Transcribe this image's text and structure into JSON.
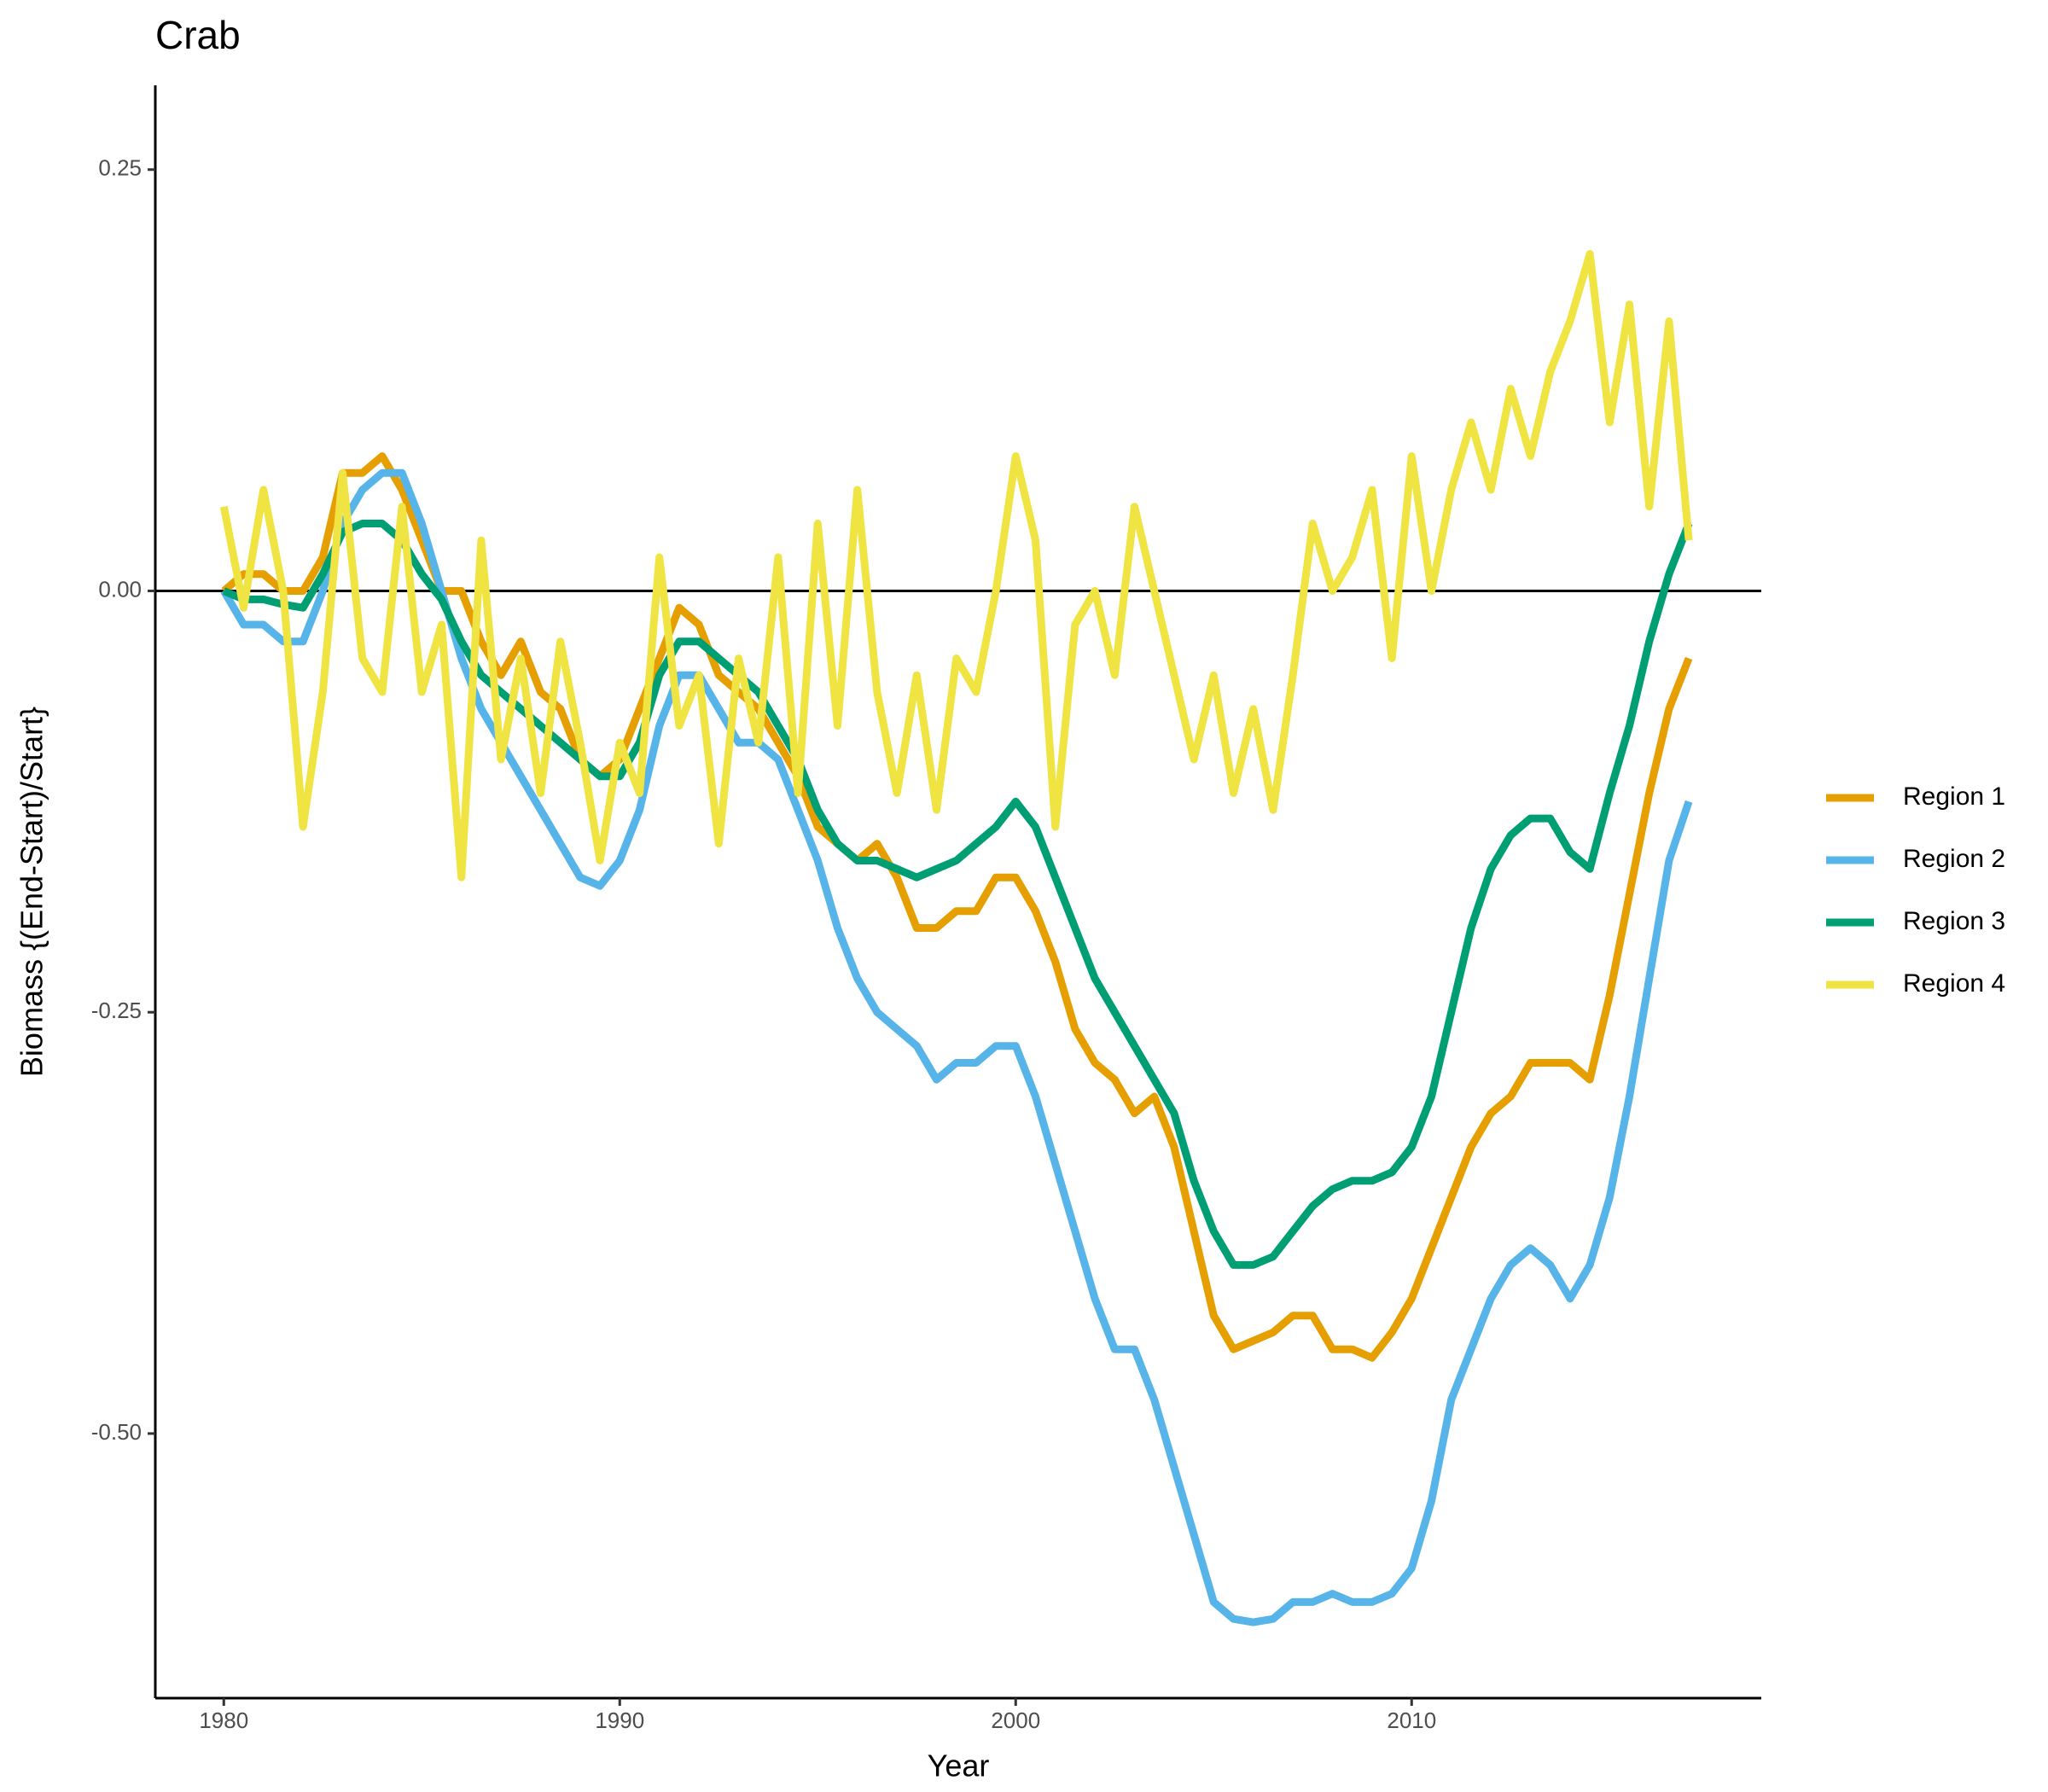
{
  "chart_data": {
    "type": "line",
    "title": "Crab",
    "x_label": "Year",
    "y_label": "Biomass {(End-Start)/Start}",
    "x": [
      1980,
      1980.5,
      1981,
      1981.5,
      1982,
      1982.5,
      1983,
      1983.5,
      1984,
      1984.5,
      1985,
      1985.5,
      1986,
      1986.5,
      1987,
      1987.5,
      1988,
      1988.5,
      1989,
      1989.5,
      1990,
      1990.5,
      1991,
      1991.5,
      1992,
      1992.5,
      1993,
      1993.5,
      1994,
      1994.5,
      1995,
      1995.5,
      1996,
      1996.5,
      1997,
      1997.5,
      1998,
      1998.5,
      1999,
      1999.5,
      2000,
      2000.5,
      2001,
      2001.5,
      2002,
      2002.5,
      2003,
      2003.5,
      2004,
      2004.5,
      2005,
      2005.5,
      2006,
      2006.5,
      2007,
      2007.5,
      2008,
      2008.5,
      2009,
      2009.5,
      2010,
      2010.5,
      2011,
      2011.5,
      2012,
      2012.5,
      2013,
      2013.5,
      2014,
      2014.5,
      2015,
      2015.5,
      2016,
      2016.5,
      2017
    ],
    "series": [
      {
        "name": "Region 1",
        "color": "#E69F00",
        "values": [
          0,
          0.01,
          0.01,
          0.0,
          0.0,
          0.02,
          0.07,
          0.07,
          0.08,
          0.06,
          0.03,
          0.0,
          0.0,
          -0.03,
          -0.05,
          -0.03,
          -0.06,
          -0.07,
          -0.1,
          -0.11,
          -0.1,
          -0.07,
          -0.04,
          -0.01,
          -0.02,
          -0.05,
          -0.06,
          -0.07,
          -0.09,
          -0.11,
          -0.14,
          -0.15,
          -0.16,
          -0.15,
          -0.17,
          -0.2,
          -0.2,
          -0.19,
          -0.19,
          -0.17,
          -0.17,
          -0.19,
          -0.22,
          -0.26,
          -0.28,
          -0.29,
          -0.31,
          -0.3,
          -0.33,
          -0.38,
          -0.43,
          -0.45,
          -0.445,
          -0.44,
          -0.43,
          -0.43,
          -0.45,
          -0.45,
          -0.455,
          -0.44,
          -0.42,
          -0.39,
          -0.36,
          -0.33,
          -0.31,
          -0.3,
          -0.28,
          -0.28,
          -0.28,
          -0.29,
          -0.24,
          -0.18,
          -0.12,
          -0.07,
          -0.04
        ]
      },
      {
        "name": "Region 2",
        "color": "#56B4E9",
        "values": [
          0,
          -0.02,
          -0.02,
          -0.03,
          -0.03,
          0.0,
          0.04,
          0.06,
          0.07,
          0.07,
          0.04,
          0.0,
          -0.04,
          -0.07,
          -0.09,
          -0.11,
          -0.13,
          -0.15,
          -0.17,
          -0.175,
          -0.16,
          -0.13,
          -0.08,
          -0.05,
          -0.05,
          -0.07,
          -0.09,
          -0.09,
          -0.1,
          -0.13,
          -0.16,
          -0.2,
          -0.23,
          -0.25,
          -0.26,
          -0.27,
          -0.29,
          -0.28,
          -0.28,
          -0.27,
          -0.27,
          -0.3,
          -0.34,
          -0.38,
          -0.42,
          -0.45,
          -0.45,
          -0.48,
          -0.52,
          -0.56,
          -0.6,
          -0.61,
          -0.612,
          -0.61,
          -0.6,
          -0.6,
          -0.595,
          -0.6,
          -0.6,
          -0.595,
          -0.58,
          -0.54,
          -0.48,
          -0.45,
          -0.42,
          -0.4,
          -0.39,
          -0.4,
          -0.42,
          -0.4,
          -0.36,
          -0.3,
          -0.23,
          -0.16,
          -0.125
        ]
      },
      {
        "name": "Region 3",
        "color": "#009E73",
        "values": [
          0,
          -0.005,
          -0.005,
          -0.008,
          -0.01,
          0.01,
          0.035,
          0.04,
          0.04,
          0.03,
          0.01,
          -0.005,
          -0.03,
          -0.05,
          -0.06,
          -0.07,
          -0.08,
          -0.09,
          -0.1,
          -0.11,
          -0.11,
          -0.09,
          -0.05,
          -0.03,
          -0.03,
          -0.04,
          -0.05,
          -0.06,
          -0.08,
          -0.1,
          -0.13,
          -0.15,
          -0.16,
          -0.16,
          -0.165,
          -0.17,
          -0.165,
          -0.16,
          -0.15,
          -0.14,
          -0.125,
          -0.14,
          -0.17,
          -0.2,
          -0.23,
          -0.25,
          -0.27,
          -0.29,
          -0.31,
          -0.35,
          -0.38,
          -0.4,
          -0.4,
          -0.395,
          -0.38,
          -0.365,
          -0.355,
          -0.35,
          -0.35,
          -0.345,
          -0.33,
          -0.3,
          -0.25,
          -0.2,
          -0.165,
          -0.145,
          -0.135,
          -0.135,
          -0.155,
          -0.165,
          -0.12,
          -0.08,
          -0.03,
          0.01,
          0.04
        ]
      },
      {
        "name": "Region 4",
        "color": "#F0E442",
        "values": [
          0.05,
          -0.01,
          0.06,
          0.0,
          -0.14,
          -0.06,
          0.07,
          -0.04,
          -0.06,
          0.05,
          -0.06,
          -0.02,
          -0.17,
          0.03,
          -0.1,
          -0.04,
          -0.12,
          -0.03,
          -0.09,
          -0.16,
          -0.09,
          -0.12,
          0.02,
          -0.08,
          -0.05,
          -0.15,
          -0.04,
          -0.09,
          0.02,
          -0.12,
          0.04,
          -0.08,
          0.06,
          -0.06,
          -0.12,
          -0.05,
          -0.13,
          -0.04,
          -0.06,
          0.0,
          0.08,
          0.03,
          -0.14,
          -0.02,
          0.0,
          -0.05,
          0.05,
          0.0,
          -0.05,
          -0.1,
          -0.05,
          -0.12,
          -0.07,
          -0.13,
          -0.05,
          0.04,
          0.0,
          0.02,
          0.06,
          -0.04,
          0.08,
          0.0,
          0.06,
          0.1,
          0.06,
          0.12,
          0.08,
          0.13,
          0.16,
          0.2,
          0.1,
          0.17,
          0.05,
          0.16,
          0.03
        ]
      }
    ],
    "xlim": [
      1978.27,
      2018.83
    ],
    "ylim": [
      -0.657,
      0.3
    ],
    "xticks": [
      1980,
      1990,
      2000,
      2010
    ],
    "yticks": [
      0.25,
      {
        "value": 0,
        "label": "0.00"
      },
      -0.25,
      {
        "value": -0.5,
        "label": "-0.50"
      }
    ],
    "hline": 0,
    "legend": "right",
    "grid": false
  }
}
